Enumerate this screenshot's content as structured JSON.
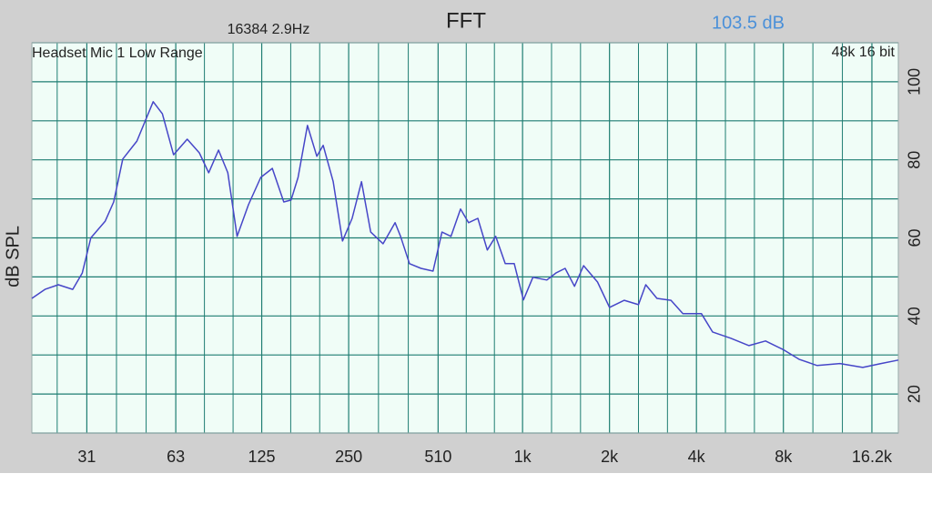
{
  "chart_data": {
    "type": "line",
    "title": "FFT",
    "resolution_label": "16384  2.9Hz",
    "level_label": "103.5 dB",
    "device_label": "Headset Mic 1 Low Range",
    "format_label": "48k 16 bit",
    "ylabel": "dB SPL",
    "xscale": "log",
    "grid": true,
    "color": "#4646c8",
    "xlim": [
      20,
      20000
    ],
    "ylim": [
      10,
      110
    ],
    "xticks": [
      31,
      63,
      125,
      250,
      510,
      {
        "value": 1000,
        "label": "1k"
      },
      {
        "value": 2000,
        "label": "2k"
      },
      {
        "value": 4000,
        "label": "4k"
      },
      {
        "value": 8000,
        "label": "8k"
      },
      {
        "value": 16200,
        "label": "16.2k"
      }
    ],
    "yticks": [
      20,
      40,
      60,
      80,
      100
    ],
    "x": [
      20,
      22.2,
      24.7,
      27.7,
      29.9,
      32,
      35.9,
      38.4,
      41.3,
      46.2,
      52.6,
      56.6,
      61.9,
      69,
      76,
      81.9,
      88.6,
      95.4,
      102.7,
      112.5,
      124,
      136,
      149,
      158,
      167,
      180,
      194,
      204,
      221,
      238,
      257,
      277,
      298,
      329,
      362,
      378,
      406,
      445,
      490,
      526,
      565,
      610,
      650,
      700,
      755,
      807,
      871,
      936,
      1007,
      1086,
      1213,
      1305,
      1404,
      1513,
      1627,
      1818,
      2000,
      2250,
      2520,
      2670,
      2920,
      3265,
      3590,
      4160,
      4550,
      5260,
      6080,
      6940,
      8020,
      9060,
      10470,
      12560,
      15060,
      17430,
      20000
    ],
    "values": [
      44.5,
      46.8,
      48,
      46.8,
      51,
      60,
      64.3,
      69.2,
      80.2,
      84.8,
      94.9,
      91.8,
      81.3,
      85.3,
      81.8,
      76.7,
      82.5,
      76.7,
      60.4,
      68.5,
      75.5,
      77.8,
      69.2,
      69.7,
      75.5,
      88.8,
      80.9,
      83.7,
      74.4,
      59.2,
      65,
      74.4,
      61.5,
      58.5,
      63.9,
      60.4,
      53.4,
      52.2,
      51.5,
      61.5,
      60.4,
      67.4,
      63.9,
      65,
      56.9,
      60.4,
      53.4,
      53.4,
      44.1,
      49.9,
      49.2,
      51,
      52.2,
      47.6,
      52.9,
      48.7,
      42.2,
      44,
      42.9,
      48,
      44.5,
      44,
      40.6,
      40.6,
      35.9,
      34.3,
      32.4,
      33.6,
      31.3,
      28.9,
      27.3,
      27.8,
      26.8,
      27.8,
      28.7
    ]
  }
}
